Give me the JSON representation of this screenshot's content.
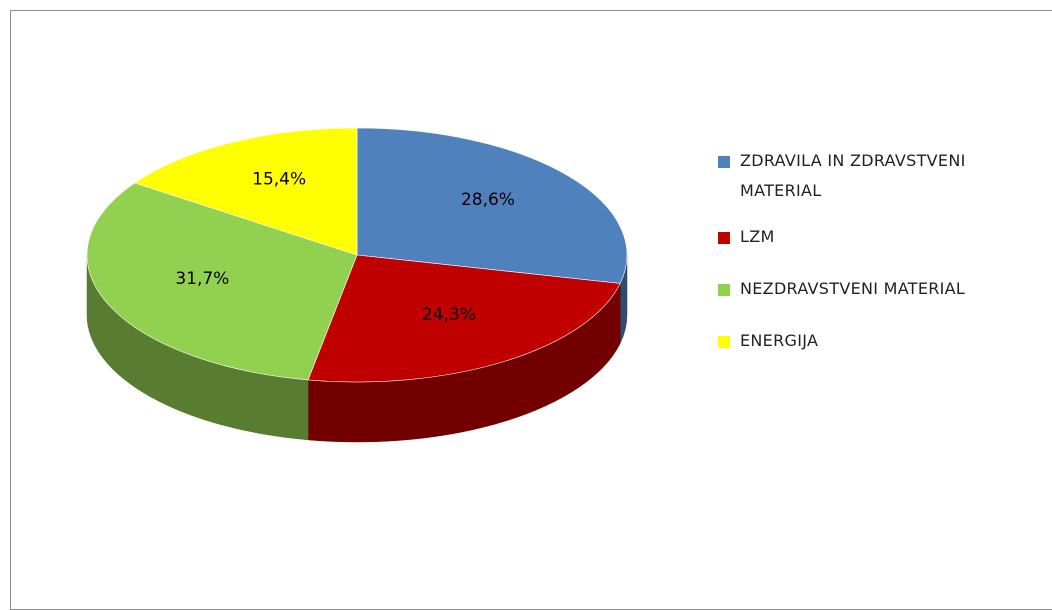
{
  "chart_data": {
    "type": "pie",
    "categories": [
      "ZDRAVILA IN ZDRAVSTVENI MATERIAL",
      "LZM",
      "NEZDRAVSTVENI MATERIAL",
      "ENERGIJA"
    ],
    "values": [
      28.6,
      24.3,
      31.7,
      15.4
    ],
    "value_labels": [
      "28,6%",
      "24,3%",
      "31,7%",
      "15,4%"
    ],
    "colors": [
      "#4f81bd",
      "#c00000",
      "#92d050",
      "#ffff00"
    ]
  }
}
